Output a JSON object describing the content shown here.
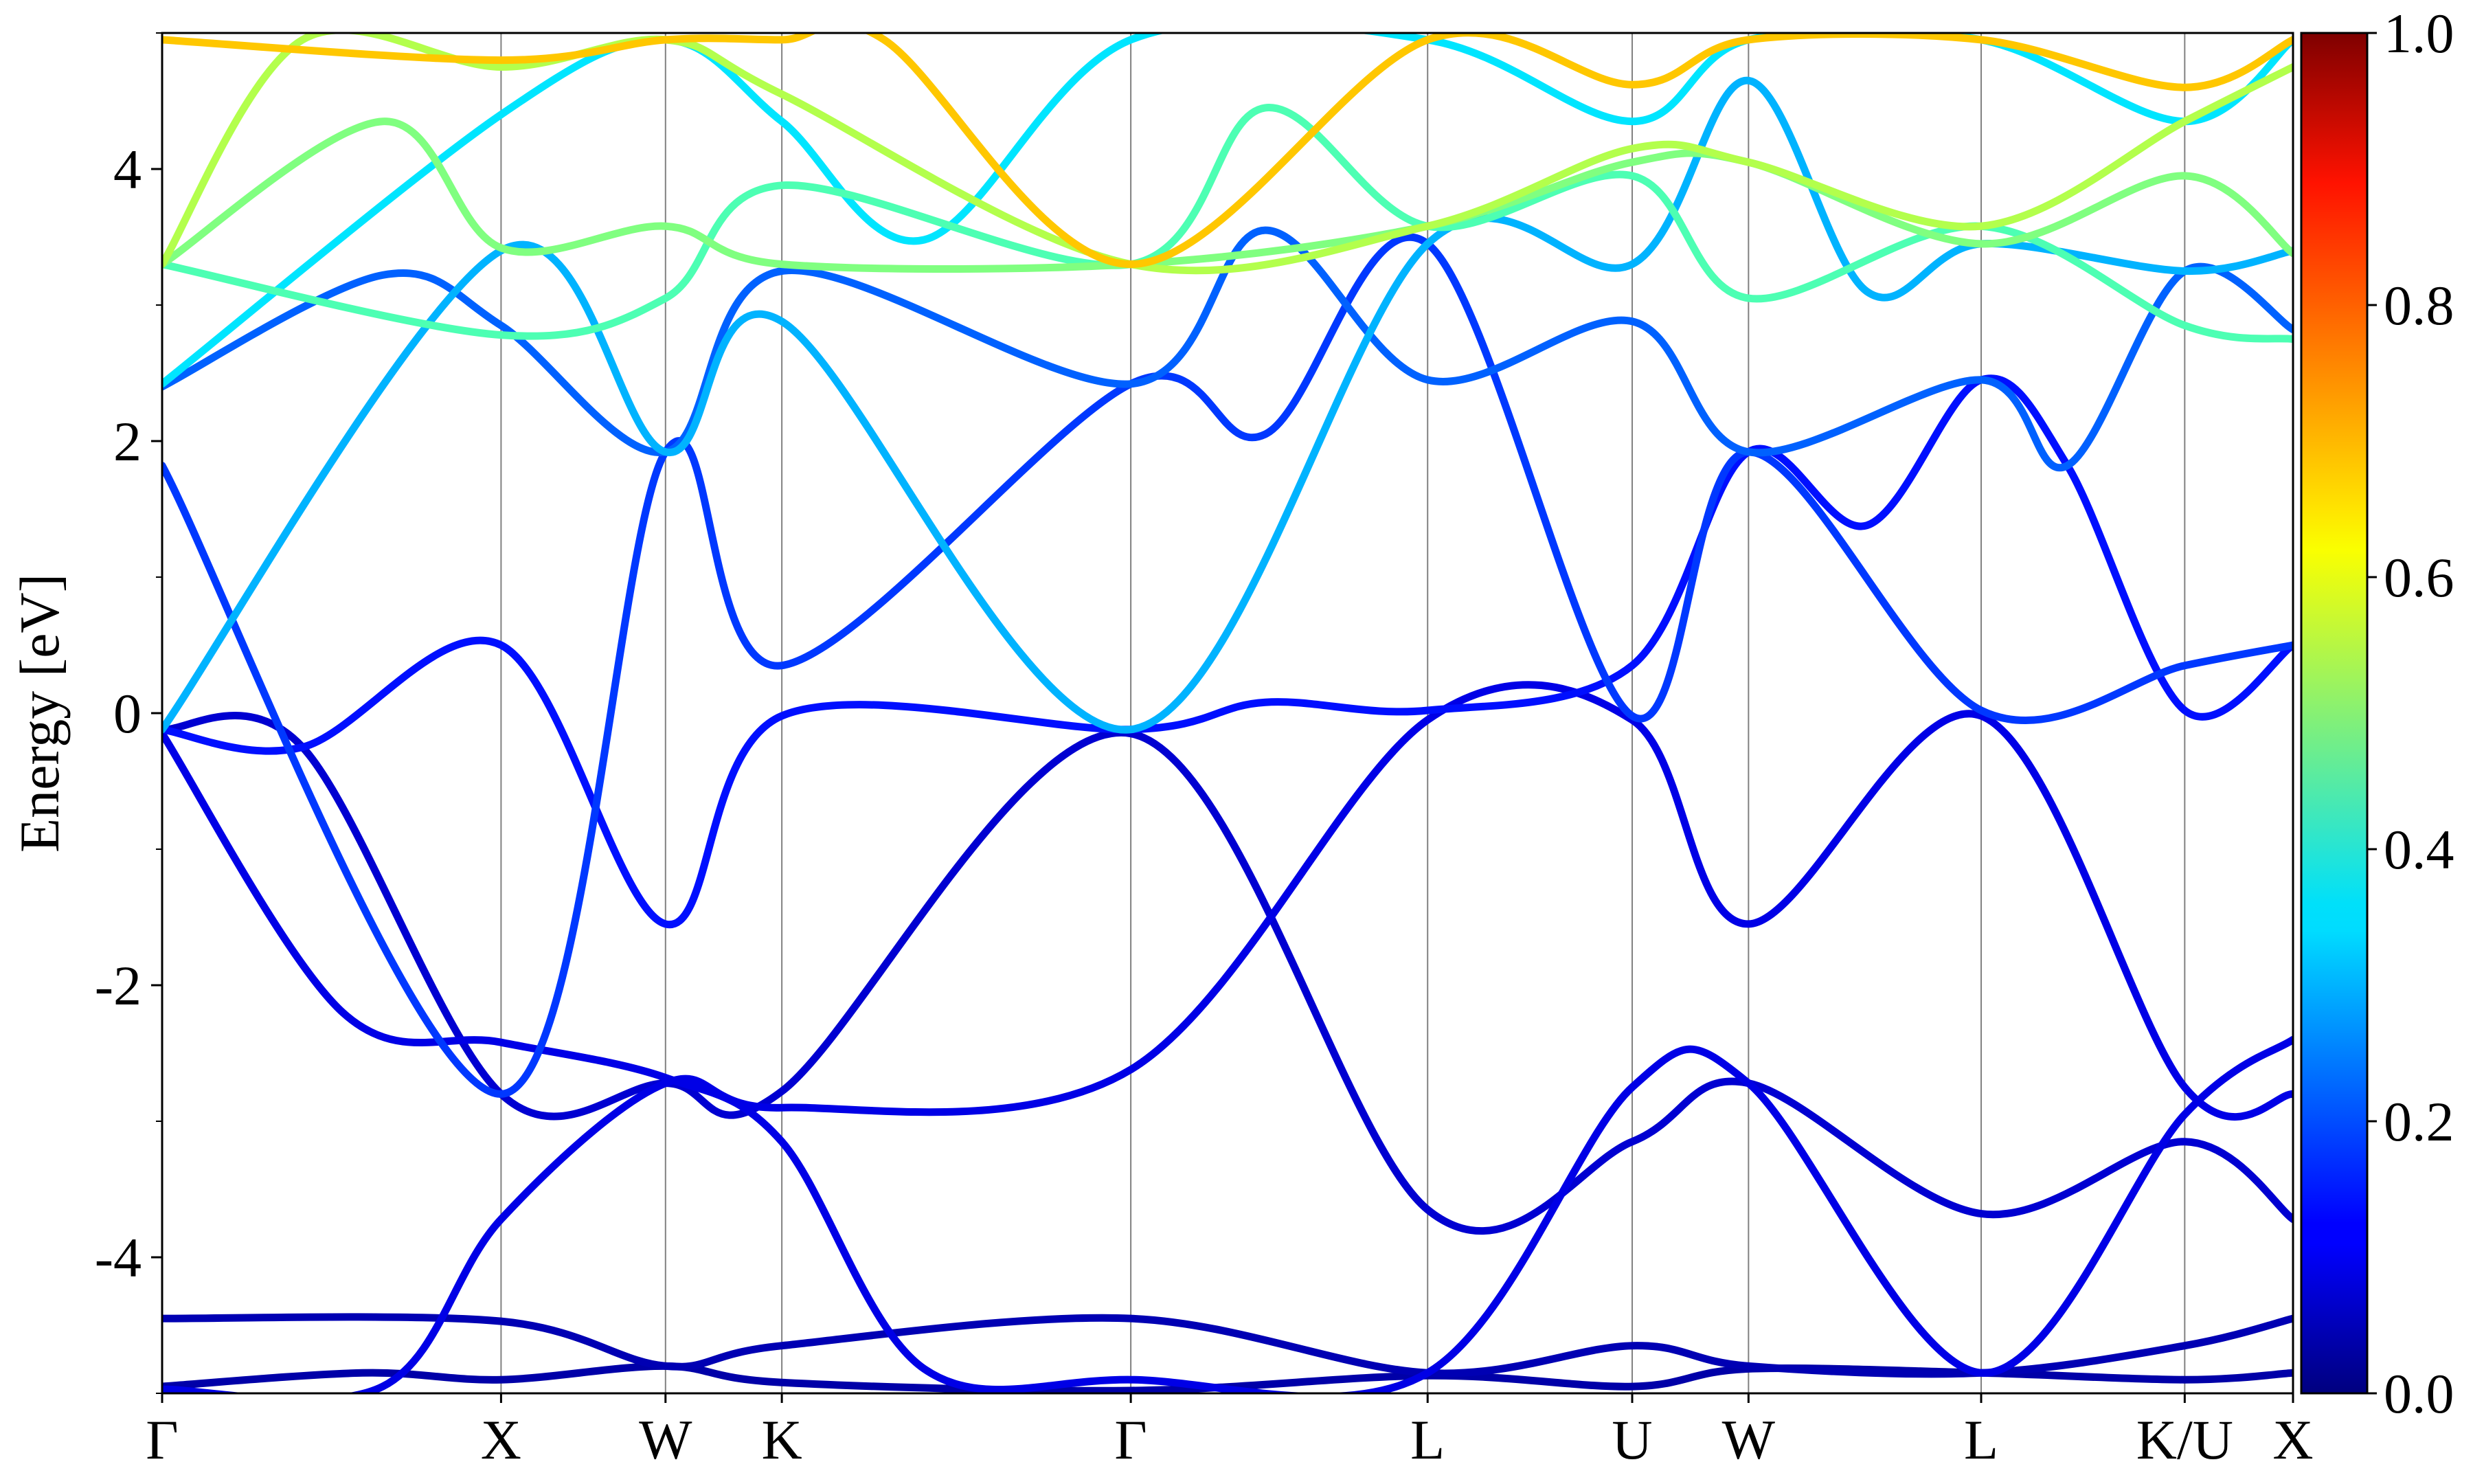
{
  "chart_data": {
    "type": "line",
    "ylabel": "Energy [eV]",
    "ylim": [
      -5,
      5
    ],
    "y_ticks": [
      {
        "value": 4,
        "label": "4"
      },
      {
        "value": 2,
        "label": "2"
      },
      {
        "value": 0,
        "label": "0"
      },
      {
        "value": -2,
        "label": "-2"
      },
      {
        "value": -4,
        "label": "-4"
      }
    ],
    "x_path_coordinate": [
      0,
      2.125
    ],
    "k_points": [
      {
        "label": "Γ",
        "x": 0
      },
      {
        "label": "X",
        "x": 0.338
      },
      {
        "label": "W",
        "x": 0.502
      },
      {
        "label": "K",
        "x": 0.618
      },
      {
        "label": "Γ",
        "x": 0.966
      },
      {
        "label": "L",
        "x": 1.262
      },
      {
        "label": "U",
        "x": 1.466
      },
      {
        "label": "W",
        "x": 1.582
      },
      {
        "label": "L",
        "x": 1.814
      },
      {
        "label": "K/U",
        "x": 2.017
      },
      {
        "label": "X",
        "x": 2.125
      }
    ],
    "colorbar": {
      "range": [
        0,
        1
      ],
      "colormap": "jet",
      "ticks": [
        {
          "value": 0.0,
          "label": "0.0"
        },
        {
          "value": 0.2,
          "label": "0.2"
        },
        {
          "value": 0.4,
          "label": "0.4"
        },
        {
          "value": 0.6,
          "label": "0.6"
        },
        {
          "value": 0.8,
          "label": "0.8"
        },
        {
          "value": 1.0,
          "label": "1.0"
        }
      ]
    },
    "series": [
      {
        "weight": 0.05,
        "points": [
          [
            0,
            -4.45
          ],
          [
            0.338,
            -4.47
          ],
          [
            0.502,
            -4.8
          ],
          [
            0.618,
            -4.65
          ],
          [
            0.966,
            -4.45
          ],
          [
            1.262,
            -4.85
          ],
          [
            1.466,
            -4.65
          ],
          [
            1.582,
            -4.8
          ],
          [
            1.814,
            -4.85
          ],
          [
            2.017,
            -4.65
          ],
          [
            2.125,
            -4.45
          ]
        ]
      },
      {
        "weight": 0.04,
        "points": [
          [
            0,
            -4.95
          ],
          [
            0.2,
            -4.85
          ],
          [
            0.338,
            -4.9
          ],
          [
            0.502,
            -4.8
          ],
          [
            0.618,
            -4.92
          ],
          [
            0.966,
            -4.98
          ],
          [
            1.262,
            -4.87
          ],
          [
            1.466,
            -4.95
          ],
          [
            1.582,
            -4.82
          ],
          [
            1.814,
            -4.85
          ],
          [
            2.017,
            -4.9
          ],
          [
            2.125,
            -4.85
          ]
        ]
      },
      {
        "weight": 0.1,
        "points": [
          [
            0,
            -4.97
          ],
          [
            0.22,
            -4.95
          ],
          [
            0.338,
            -3.72
          ],
          [
            0.502,
            -2.72
          ],
          [
            0.618,
            -2.9
          ],
          [
            0.966,
            -2.62
          ],
          [
            1.262,
            -0.05
          ],
          [
            1.466,
            -0.05
          ],
          [
            1.582,
            -1.55
          ],
          [
            1.814,
            -0.02
          ],
          [
            2.017,
            -2.75
          ],
          [
            2.125,
            -2.8
          ]
        ]
      },
      {
        "weight": 0.08,
        "points": [
          [
            0,
            -0.12
          ],
          [
            0.14,
            -0.25
          ],
          [
            0.338,
            -2.8
          ],
          [
            0.502,
            -2.72
          ],
          [
            0.618,
            -2.78
          ],
          [
            0.966,
            -0.15
          ],
          [
            1.262,
            -3.65
          ],
          [
            1.466,
            -3.15
          ],
          [
            1.582,
            -2.72
          ],
          [
            1.814,
            -3.68
          ],
          [
            2.017,
            -3.15
          ],
          [
            2.125,
            -3.72
          ]
        ]
      },
      {
        "weight": 0.1,
        "points": [
          [
            0,
            -0.15
          ],
          [
            0.18,
            -2.2
          ],
          [
            0.338,
            -2.42
          ],
          [
            0.502,
            -2.68
          ],
          [
            0.618,
            -3.15
          ],
          [
            0.76,
            -4.82
          ],
          [
            0.966,
            -4.9
          ],
          [
            1.262,
            -4.85
          ],
          [
            1.466,
            -2.75
          ],
          [
            1.582,
            -2.72
          ],
          [
            1.814,
            -4.85
          ],
          [
            2.017,
            -2.95
          ],
          [
            2.125,
            -2.4
          ]
        ]
      },
      {
        "weight": 0.14,
        "points": [
          [
            0,
            -0.12
          ],
          [
            0.14,
            -0.25
          ],
          [
            0.338,
            0.5
          ],
          [
            0.502,
            -1.55
          ],
          [
            0.618,
            -0.02
          ],
          [
            0.966,
            -0.12
          ],
          [
            1.1,
            0.08
          ],
          [
            1.262,
            0.02
          ],
          [
            1.466,
            0.35
          ],
          [
            1.582,
            1.92
          ],
          [
            1.7,
            1.38
          ],
          [
            1.814,
            2.45
          ],
          [
            1.9,
            1.82
          ],
          [
            2.017,
            0.02
          ],
          [
            2.125,
            0.5
          ]
        ]
      },
      {
        "weight": 0.18,
        "points": [
          [
            0,
            1.82
          ],
          [
            0.338,
            -2.8
          ],
          [
            0.502,
            1.92
          ],
          [
            0.618,
            0.35
          ],
          [
            0.966,
            2.42
          ],
          [
            1.1,
            2.05
          ],
          [
            1.262,
            3.45
          ],
          [
            1.466,
            -0.02
          ],
          [
            1.582,
            1.92
          ],
          [
            1.814,
            0.02
          ],
          [
            2.017,
            0.35
          ],
          [
            2.125,
            0.5
          ]
        ]
      },
      {
        "weight": 0.22,
        "points": [
          [
            0,
            2.4
          ],
          [
            0.22,
            3.22
          ],
          [
            0.338,
            2.85
          ],
          [
            0.502,
            1.92
          ],
          [
            0.618,
            3.25
          ],
          [
            0.966,
            2.42
          ],
          [
            1.1,
            3.55
          ],
          [
            1.262,
            2.45
          ],
          [
            1.466,
            2.88
          ],
          [
            1.582,
            1.92
          ],
          [
            1.814,
            2.45
          ],
          [
            1.9,
            1.82
          ],
          [
            2.017,
            3.25
          ],
          [
            2.125,
            2.82
          ]
        ]
      },
      {
        "weight": 0.3,
        "points": [
          [
            0,
            -0.12
          ],
          [
            0.338,
            3.4
          ],
          [
            0.502,
            1.92
          ],
          [
            0.618,
            2.88
          ],
          [
            0.966,
            -0.12
          ],
          [
            1.262,
            3.45
          ],
          [
            1.466,
            3.3
          ],
          [
            1.582,
            4.65
          ],
          [
            1.7,
            3.1
          ],
          [
            1.814,
            3.45
          ],
          [
            2.017,
            3.25
          ],
          [
            2.125,
            3.4
          ]
        ]
      },
      {
        "weight": 0.45,
        "points": [
          [
            0,
            3.3
          ],
          [
            0.338,
            2.78
          ],
          [
            0.502,
            3.05
          ],
          [
            0.618,
            3.88
          ],
          [
            0.966,
            3.3
          ],
          [
            1.1,
            4.45
          ],
          [
            1.262,
            3.58
          ],
          [
            1.466,
            3.95
          ],
          [
            1.582,
            3.05
          ],
          [
            1.814,
            3.58
          ],
          [
            2.017,
            2.85
          ],
          [
            2.125,
            2.75
          ]
        ]
      },
      {
        "weight": 0.5,
        "points": [
          [
            0,
            3.3
          ],
          [
            0.22,
            4.35
          ],
          [
            0.338,
            3.42
          ],
          [
            0.502,
            3.58
          ],
          [
            0.618,
            3.3
          ],
          [
            0.966,
            3.3
          ],
          [
            1.262,
            3.58
          ],
          [
            1.466,
            4.05
          ],
          [
            1.582,
            4.05
          ],
          [
            1.814,
            3.45
          ],
          [
            2.017,
            3.95
          ],
          [
            2.125,
            3.38
          ]
        ]
      },
      {
        "weight": 0.55,
        "points": [
          [
            0,
            3.3
          ],
          [
            0.14,
            4.95
          ],
          [
            0.338,
            4.75
          ],
          [
            0.502,
            4.95
          ],
          [
            0.618,
            4.55
          ],
          [
            0.966,
            3.3
          ],
          [
            1.262,
            3.58
          ],
          [
            1.466,
            4.15
          ],
          [
            1.582,
            4.05
          ],
          [
            1.814,
            3.58
          ],
          [
            2.017,
            4.35
          ],
          [
            2.125,
            4.75
          ]
        ]
      },
      {
        "weight": 0.68,
        "points": [
          [
            0,
            4.95
          ],
          [
            0.338,
            4.8
          ],
          [
            0.502,
            4.95
          ],
          [
            0.618,
            4.95
          ],
          [
            0.72,
            4.95
          ],
          [
            0.966,
            3.3
          ],
          [
            1.262,
            4.95
          ],
          [
            1.466,
            4.62
          ],
          [
            1.582,
            4.95
          ],
          [
            1.814,
            4.95
          ],
          [
            2.017,
            4.6
          ],
          [
            2.125,
            4.95
          ]
        ]
      },
      {
        "weight": 0.35,
        "points": [
          [
            0,
            2.42
          ],
          [
            0.338,
            4.4
          ],
          [
            0.502,
            4.95
          ],
          [
            0.618,
            4.35
          ],
          [
            0.76,
            3.48
          ],
          [
            0.966,
            4.95
          ],
          [
            1.262,
            4.95
          ],
          [
            1.466,
            4.35
          ],
          [
            1.582,
            4.95
          ],
          [
            1.814,
            4.95
          ],
          [
            2.017,
            4.35
          ],
          [
            2.125,
            4.95
          ]
        ]
      }
    ]
  }
}
